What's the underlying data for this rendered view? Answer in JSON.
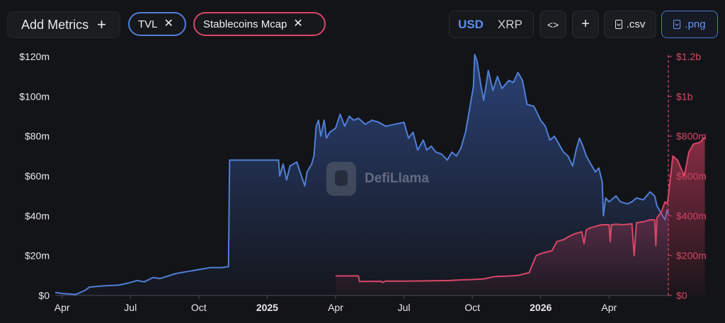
{
  "toolbar": {
    "add_metrics_label": "Add Metrics",
    "plus_icon": "+",
    "chips": [
      {
        "label": "TVL",
        "color": "#4f7fd8"
      },
      {
        "label": "Stablecoins Mcap",
        "color": "#d84668"
      }
    ],
    "close_glyph": "✕",
    "currency_options": [
      "USD",
      "XRP"
    ],
    "selected_currency": "USD",
    "embed_label": "<>",
    "add_label": "+",
    "csv_label": ".csv",
    "png_label": ".png"
  },
  "watermark": {
    "text": "DefiLlama"
  },
  "chart_data": {
    "type": "area",
    "x_labels": [
      "Apr",
      "Jul",
      "Oct",
      "2025",
      "Apr",
      "Jul",
      "Oct",
      "2026",
      "Apr"
    ],
    "x_labels_bold": [
      "2025",
      "2026"
    ],
    "x_months_index": [
      0,
      3,
      6,
      9,
      12,
      15,
      18,
      21,
      24
    ],
    "x_range_months": [
      -0.3,
      26.6
    ],
    "left_axis": {
      "ticks": [
        "$0",
        "$20m",
        "$40m",
        "$60m",
        "$80m",
        "$100m",
        "$120m"
      ],
      "values": [
        0,
        20,
        40,
        60,
        80,
        100,
        120
      ],
      "ylim": [
        0,
        120
      ],
      "unit": "m"
    },
    "right_axis": {
      "ticks": [
        "$0",
        "$200m",
        "$400m",
        "$600m",
        "$800m",
        "$1b",
        "$1.2b"
      ],
      "values": [
        0,
        200,
        400,
        600,
        800,
        1000,
        1200
      ],
      "ylim": [
        0,
        1200
      ],
      "unit": "m"
    },
    "grid": false,
    "series": [
      {
        "name": "TVL",
        "axis": "left",
        "color": "#4f7fd8",
        "points": [
          [
            -0.3,
            1.5
          ],
          [
            0,
            1
          ],
          [
            0.6,
            0.5
          ],
          [
            1,
            2.5
          ],
          [
            1.2,
            4.2
          ],
          [
            1.8,
            4.8
          ],
          [
            2.5,
            5.2
          ],
          [
            3,
            6.5
          ],
          [
            3.3,
            7.5
          ],
          [
            3.6,
            6.8
          ],
          [
            4,
            9
          ],
          [
            4.3,
            8.5
          ],
          [
            5,
            11
          ],
          [
            5.5,
            12
          ],
          [
            6,
            13
          ],
          [
            6.5,
            14
          ],
          [
            7.0,
            14
          ],
          [
            7.3,
            14.5
          ],
          [
            7.35,
            68
          ],
          [
            9.5,
            68
          ],
          [
            9.55,
            60
          ],
          [
            9.7,
            66
          ],
          [
            9.85,
            58
          ],
          [
            10,
            65
          ],
          [
            10.3,
            67
          ],
          [
            10.5,
            60
          ],
          [
            10.65,
            55
          ],
          [
            10.75,
            62
          ],
          [
            10.95,
            66
          ],
          [
            11.05,
            70
          ],
          [
            11.15,
            85
          ],
          [
            11.25,
            88
          ],
          [
            11.35,
            80
          ],
          [
            11.5,
            88
          ],
          [
            11.6,
            79
          ],
          [
            11.75,
            82
          ],
          [
            12,
            84
          ],
          [
            12.2,
            91
          ],
          [
            12.4,
            85
          ],
          [
            12.6,
            90
          ],
          [
            12.8,
            88
          ],
          [
            13,
            89
          ],
          [
            13.3,
            86
          ],
          [
            13.6,
            88
          ],
          [
            13.9,
            87
          ],
          [
            14.2,
            85
          ],
          [
            14.6,
            86
          ],
          [
            15,
            87
          ],
          [
            15.2,
            79
          ],
          [
            15.4,
            82
          ],
          [
            15.6,
            73
          ],
          [
            15.85,
            78
          ],
          [
            16.0,
            73
          ],
          [
            16.2,
            75
          ],
          [
            16.4,
            72
          ],
          [
            16.65,
            71
          ],
          [
            16.9,
            68
          ],
          [
            17.1,
            72
          ],
          [
            17.3,
            70
          ],
          [
            17.5,
            74
          ],
          [
            17.7,
            82
          ],
          [
            17.9,
            95
          ],
          [
            18.05,
            105
          ],
          [
            18.1,
            121
          ],
          [
            18.2,
            118
          ],
          [
            18.4,
            104
          ],
          [
            18.5,
            98
          ],
          [
            18.7,
            113
          ],
          [
            18.9,
            103
          ],
          [
            19.1,
            110
          ],
          [
            19.3,
            104
          ],
          [
            19.6,
            108
          ],
          [
            19.8,
            107
          ],
          [
            20.0,
            112
          ],
          [
            20.2,
            108
          ],
          [
            20.4,
            96
          ],
          [
            20.7,
            95
          ],
          [
            21.0,
            88
          ],
          [
            21.2,
            85
          ],
          [
            21.4,
            78
          ],
          [
            21.6,
            80
          ],
          [
            21.8,
            76
          ],
          [
            22.0,
            72
          ],
          [
            22.2,
            70
          ],
          [
            22.4,
            65
          ],
          [
            22.55,
            73
          ],
          [
            22.7,
            79
          ],
          [
            22.85,
            75
          ],
          [
            23.0,
            70
          ],
          [
            23.2,
            66
          ],
          [
            23.4,
            62
          ],
          [
            23.55,
            64
          ],
          [
            23.7,
            57
          ],
          [
            23.75,
            40
          ],
          [
            23.85,
            49
          ],
          [
            24.0,
            47
          ],
          [
            24.3,
            50
          ],
          [
            24.5,
            47
          ],
          [
            24.8,
            46
          ],
          [
            25.0,
            47
          ],
          [
            25.2,
            49
          ],
          [
            25.5,
            48
          ],
          [
            25.8,
            52
          ],
          [
            26.0,
            50
          ],
          [
            26.1,
            45
          ],
          [
            26.3,
            41
          ],
          [
            26.45,
            38
          ],
          [
            26.55,
            43
          ],
          [
            26.6,
            41
          ]
        ]
      },
      {
        "name": "Stablecoins Mcap",
        "axis": "right",
        "color": "#d84668",
        "points": [
          [
            12.0,
            98
          ],
          [
            13,
            98
          ],
          [
            13.05,
            70
          ],
          [
            14,
            71
          ],
          [
            14.05,
            65
          ],
          [
            14.2,
            72
          ],
          [
            15,
            72
          ],
          [
            16,
            73
          ],
          [
            17,
            75
          ],
          [
            17.5,
            78
          ],
          [
            18,
            80
          ],
          [
            18.5,
            83
          ],
          [
            19,
            95
          ],
          [
            19.5,
            97
          ],
          [
            20,
            100
          ],
          [
            20.5,
            115
          ],
          [
            20.6,
            145
          ],
          [
            20.8,
            200
          ],
          [
            21,
            210
          ],
          [
            21.5,
            225
          ],
          [
            21.7,
            270
          ],
          [
            22,
            280
          ],
          [
            22.3,
            300
          ],
          [
            22.5,
            310
          ],
          [
            22.8,
            320
          ],
          [
            22.9,
            260
          ],
          [
            23,
            330
          ],
          [
            23.2,
            340
          ],
          [
            23.5,
            350
          ],
          [
            23.7,
            355
          ],
          [
            24.0,
            355
          ],
          [
            24.05,
            270
          ],
          [
            24.1,
            355
          ],
          [
            24.3,
            358
          ],
          [
            24.6,
            355
          ],
          [
            25.0,
            360
          ],
          [
            25.1,
            200
          ],
          [
            25.2,
            365
          ],
          [
            25.5,
            370
          ],
          [
            25.8,
            380
          ],
          [
            26.0,
            380
          ],
          [
            26.05,
            250
          ],
          [
            26.1,
            390
          ],
          [
            26.3,
            420
          ],
          [
            26.45,
            470
          ],
          [
            26.55,
            460
          ],
          [
            26.6,
            500
          ],
          [
            26.8,
            700
          ],
          [
            27.0,
            680
          ],
          [
            27.3,
            600
          ],
          [
            27.5,
            720
          ],
          [
            27.7,
            760
          ],
          [
            28.0,
            770
          ],
          [
            28.2,
            795
          ]
        ]
      }
    ]
  }
}
